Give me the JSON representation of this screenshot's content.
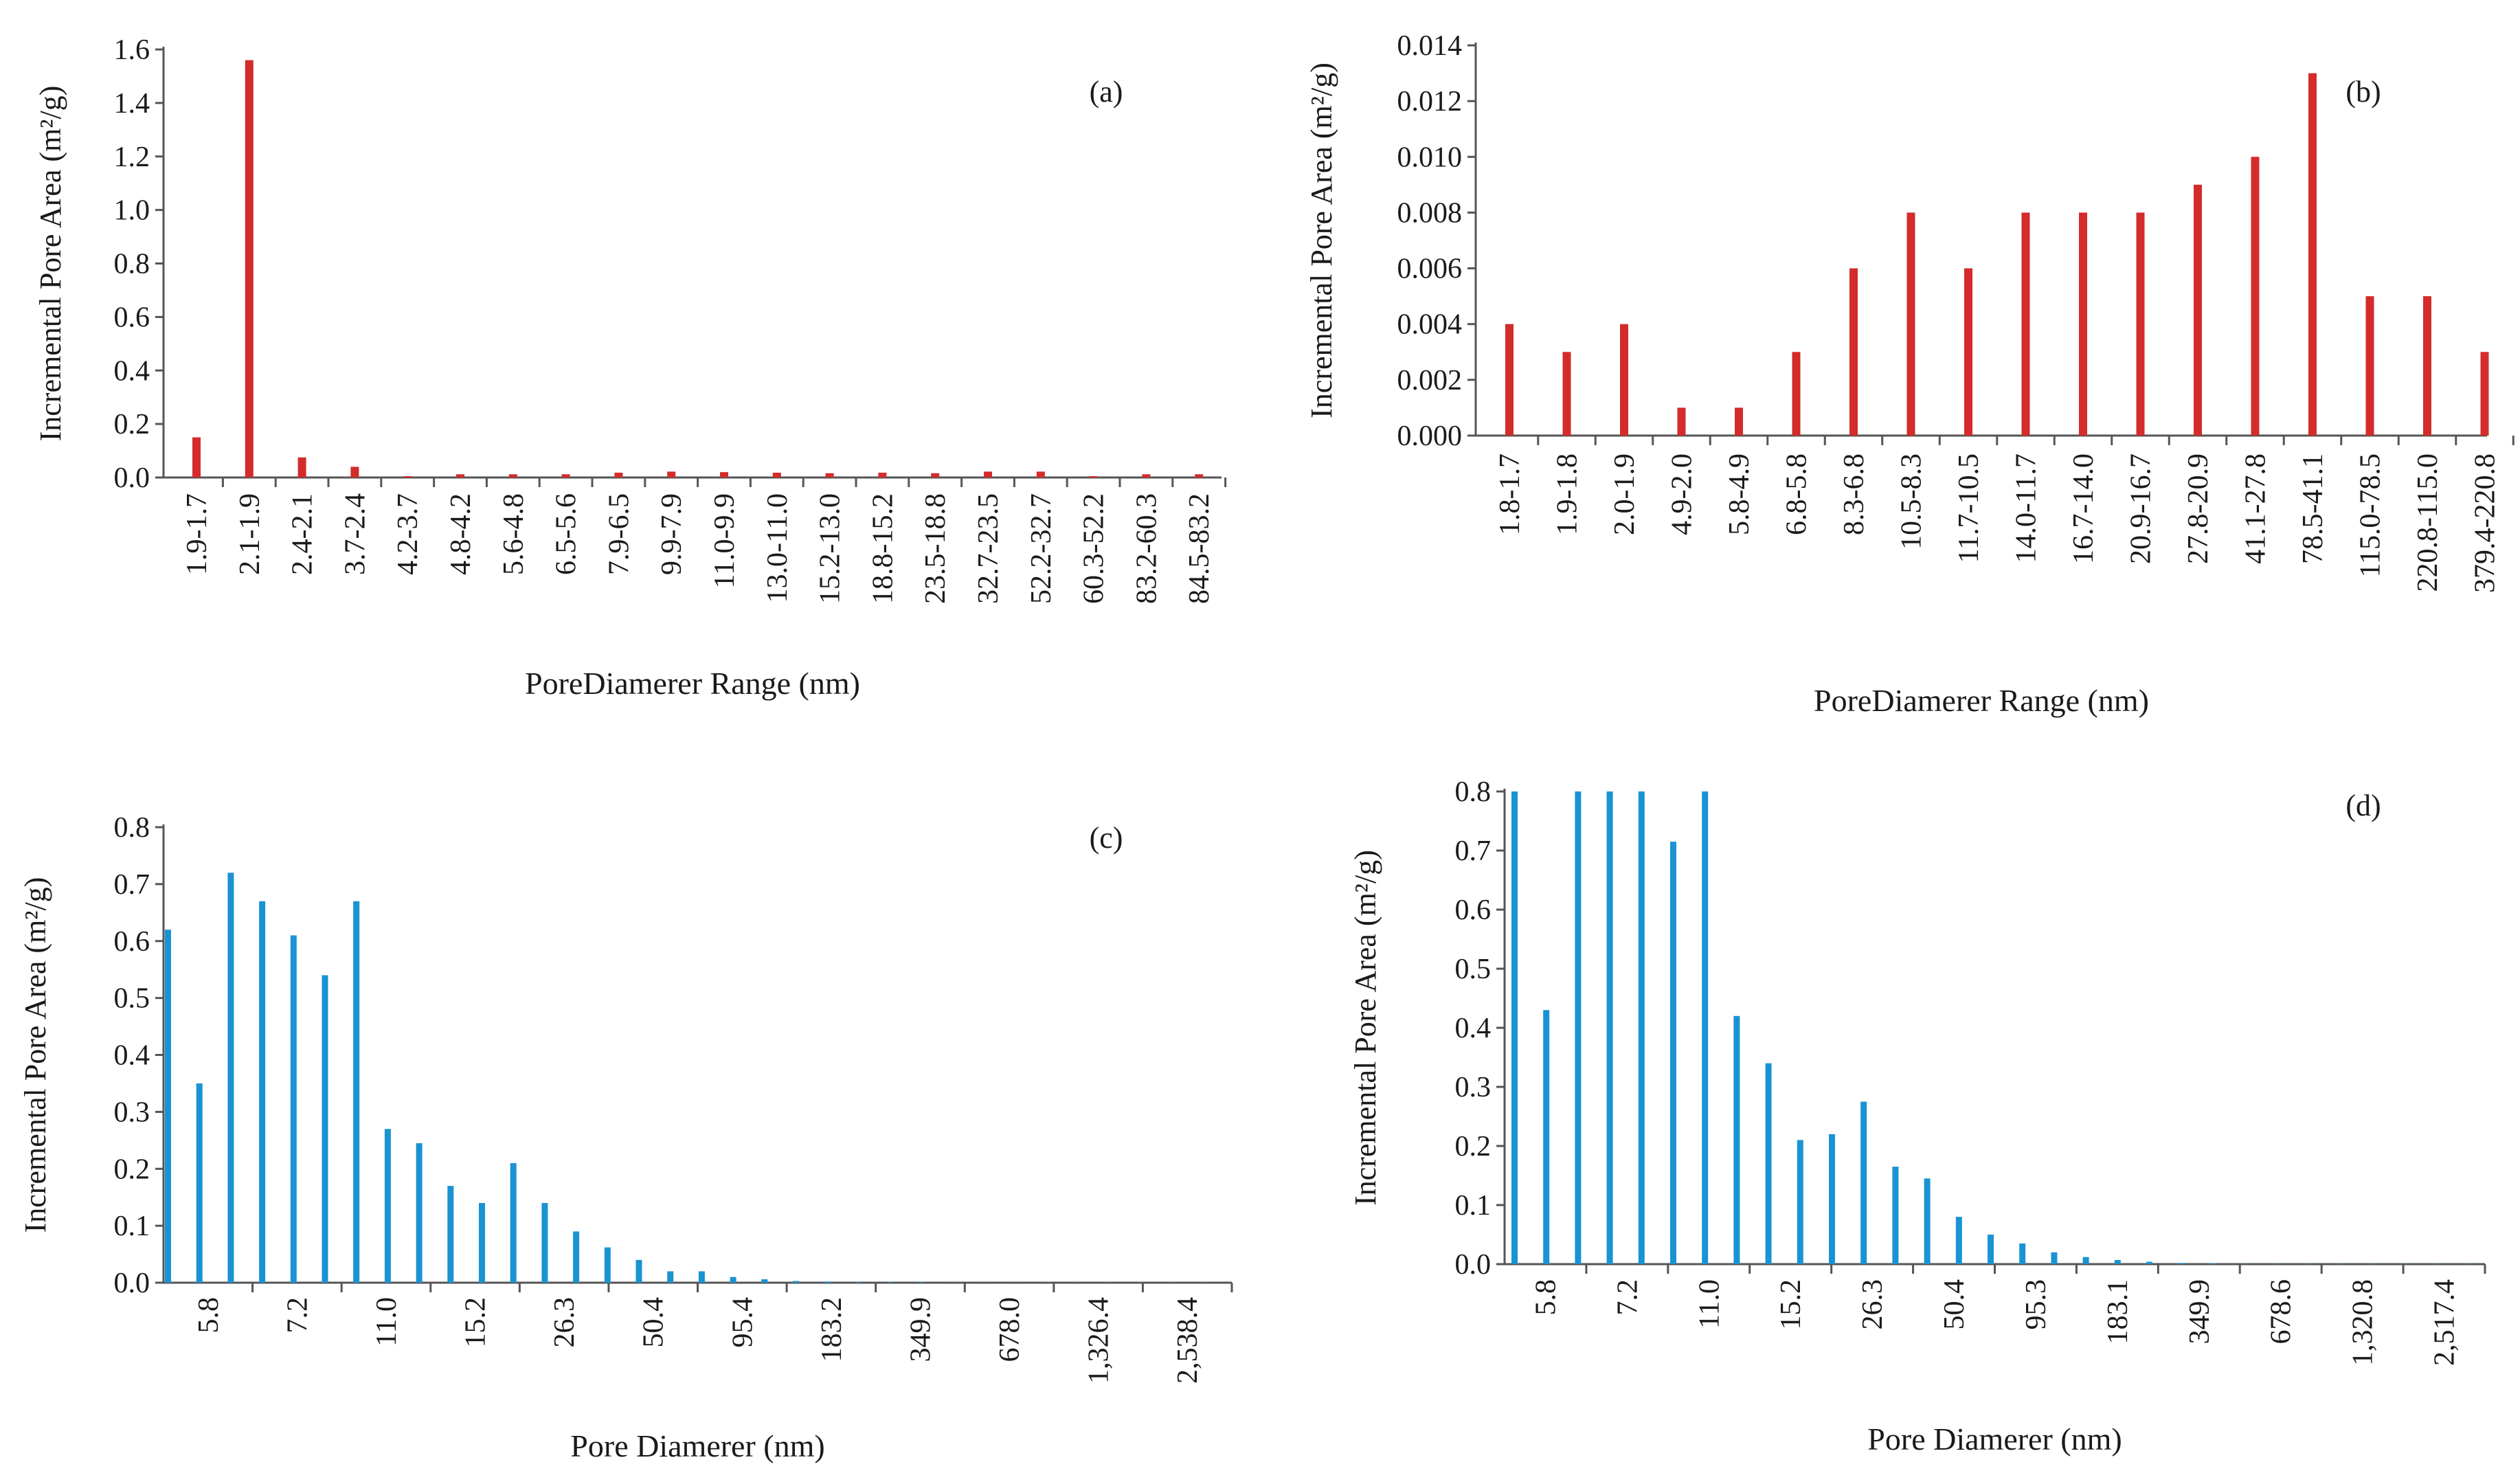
{
  "figure": {
    "panels": [
      "a",
      "b",
      "c",
      "d"
    ]
  },
  "chart_data": [
    {
      "type": "bar",
      "panel_label": "(a)",
      "color": "#d42b2b",
      "ylabel": "Incremental Pore Area (m²/g)",
      "xlabel": "PoreDiamerer Range (nm)",
      "ylim": [
        0,
        1.6
      ],
      "yticks": [
        "0.0",
        "0.2",
        "0.4",
        "0.6",
        "0.8",
        "1.0",
        "1.2",
        "1.4",
        "1.6"
      ],
      "categories": [
        "1.9-1.7",
        "2.1-1.9",
        "2.4-2.1",
        "3.7-2.4",
        "4.2-3.7",
        "4.8-4.2",
        "5.6-4.8",
        "6.5-5.6",
        "7.9-6.5",
        "9.9-7.9",
        "11.0-9.9",
        "13.0-11.0",
        "15.2-13.0",
        "18.8-15.2",
        "23.5-18.8",
        "32.7-23.5",
        "52.2-32.7",
        "60.3-52.2",
        "83.2-60.3",
        "84.5-83.2"
      ],
      "values": [
        0.15,
        1.56,
        0.075,
        0.04,
        0.005,
        0.012,
        0.012,
        0.012,
        0.018,
        0.022,
        0.02,
        0.018,
        0.016,
        0.018,
        0.016,
        0.022,
        0.022,
        0.005,
        0.012,
        0.012
      ]
    },
    {
      "type": "bar",
      "panel_label": "(b)",
      "color": "#d42b2b",
      "ylabel": "Incremental Pore Area (m²/g)",
      "xlabel": "PoreDiamerer Range (nm)",
      "ylim": [
        0,
        0.014
      ],
      "yticks": [
        "0.000",
        "0.002",
        "0.004",
        "0.006",
        "0.008",
        "0.010",
        "0.012",
        "0.014"
      ],
      "categories": [
        "1.8-1.7",
        "1.9-1.8",
        "2.0-1.9",
        "4.9-2.0",
        "5.8-4.9",
        "6.8-5.8",
        "8.3-6.8",
        "10.5-8.3",
        "11.7-10.5",
        "14.0-11.7",
        "16.7-14.0",
        "20.9-16.7",
        "27.8-20.9",
        "41.1-27.8",
        "78.5-41.1",
        "115.0-78.5",
        "220.8-115.0",
        "379.4-220.8"
      ],
      "values": [
        0.004,
        0.003,
        0.004,
        0.001,
        0.001,
        0.003,
        0.006,
        0.008,
        0.006,
        0.008,
        0.008,
        0.008,
        0.009,
        0.01,
        0.013,
        0.005,
        0.005,
        0.003
      ]
    },
    {
      "type": "bar",
      "panel_label": "(c)",
      "color": "#1a93d2",
      "ylabel": "Incremental Pore Area (m²/g)",
      "xlabel": "Pore Diamerer (nm)",
      "ylim": [
        0,
        0.8
      ],
      "yticks": [
        "0.0",
        "0.1",
        "0.2",
        "0.3",
        "0.4",
        "0.5",
        "0.6",
        "0.7",
        "0.8"
      ],
      "xticks": [
        "5.8",
        "7.2",
        "11.0",
        "15.2",
        "26.3",
        "50.4",
        "95.4",
        "183.2",
        "349.9",
        "678.0",
        "1,326.4",
        "2,538.4"
      ],
      "values": [
        0.62,
        0.35,
        0.72,
        0.67,
        0.61,
        0.54,
        0.67,
        0.27,
        0.245,
        0.17,
        0.14,
        0.21,
        0.14,
        0.09,
        0.062,
        0.04,
        0.02,
        0.02,
        0.01,
        0.006,
        0.003,
        0.002,
        0.001,
        0.001,
        0.001,
        0.0005,
        0.0005,
        0.0005,
        0.0005,
        0.0005,
        0.0005,
        0.0005,
        0.0005,
        0.0005,
        0.0005,
        0.0005
      ]
    },
    {
      "type": "bar",
      "panel_label": "(d)",
      "color": "#1a93d2",
      "ylabel": "Incremental Pore Area (m²/g)",
      "xlabel": "Pore Diamerer (nm)",
      "ylim": [
        0,
        0.8
      ],
      "yticks": [
        "0.0",
        "0.1",
        "0.2",
        "0.3",
        "0.4",
        "0.5",
        "0.6",
        "0.7",
        "0.8"
      ],
      "xticks": [
        "5.8",
        "7.2",
        "11.0",
        "15.2",
        "26.3",
        "50.4",
        "95.3",
        "183.1",
        "349.9",
        "678.6",
        "1,320.8",
        "2,517.4"
      ],
      "values": [
        0.8,
        0.43,
        0.8,
        0.8,
        0.8,
        0.715,
        0.8,
        0.42,
        0.34,
        0.21,
        0.22,
        0.275,
        0.165,
        0.145,
        0.08,
        0.05,
        0.035,
        0.02,
        0.012,
        0.007,
        0.004,
        0.002,
        0.001,
        0.0005,
        0.0005,
        0.0005,
        0.0005,
        0.0005,
        0.0005,
        0.0005,
        0.0005,
        0.0005,
        0.0005,
        0.0005,
        0.0005,
        0.0005
      ]
    }
  ]
}
